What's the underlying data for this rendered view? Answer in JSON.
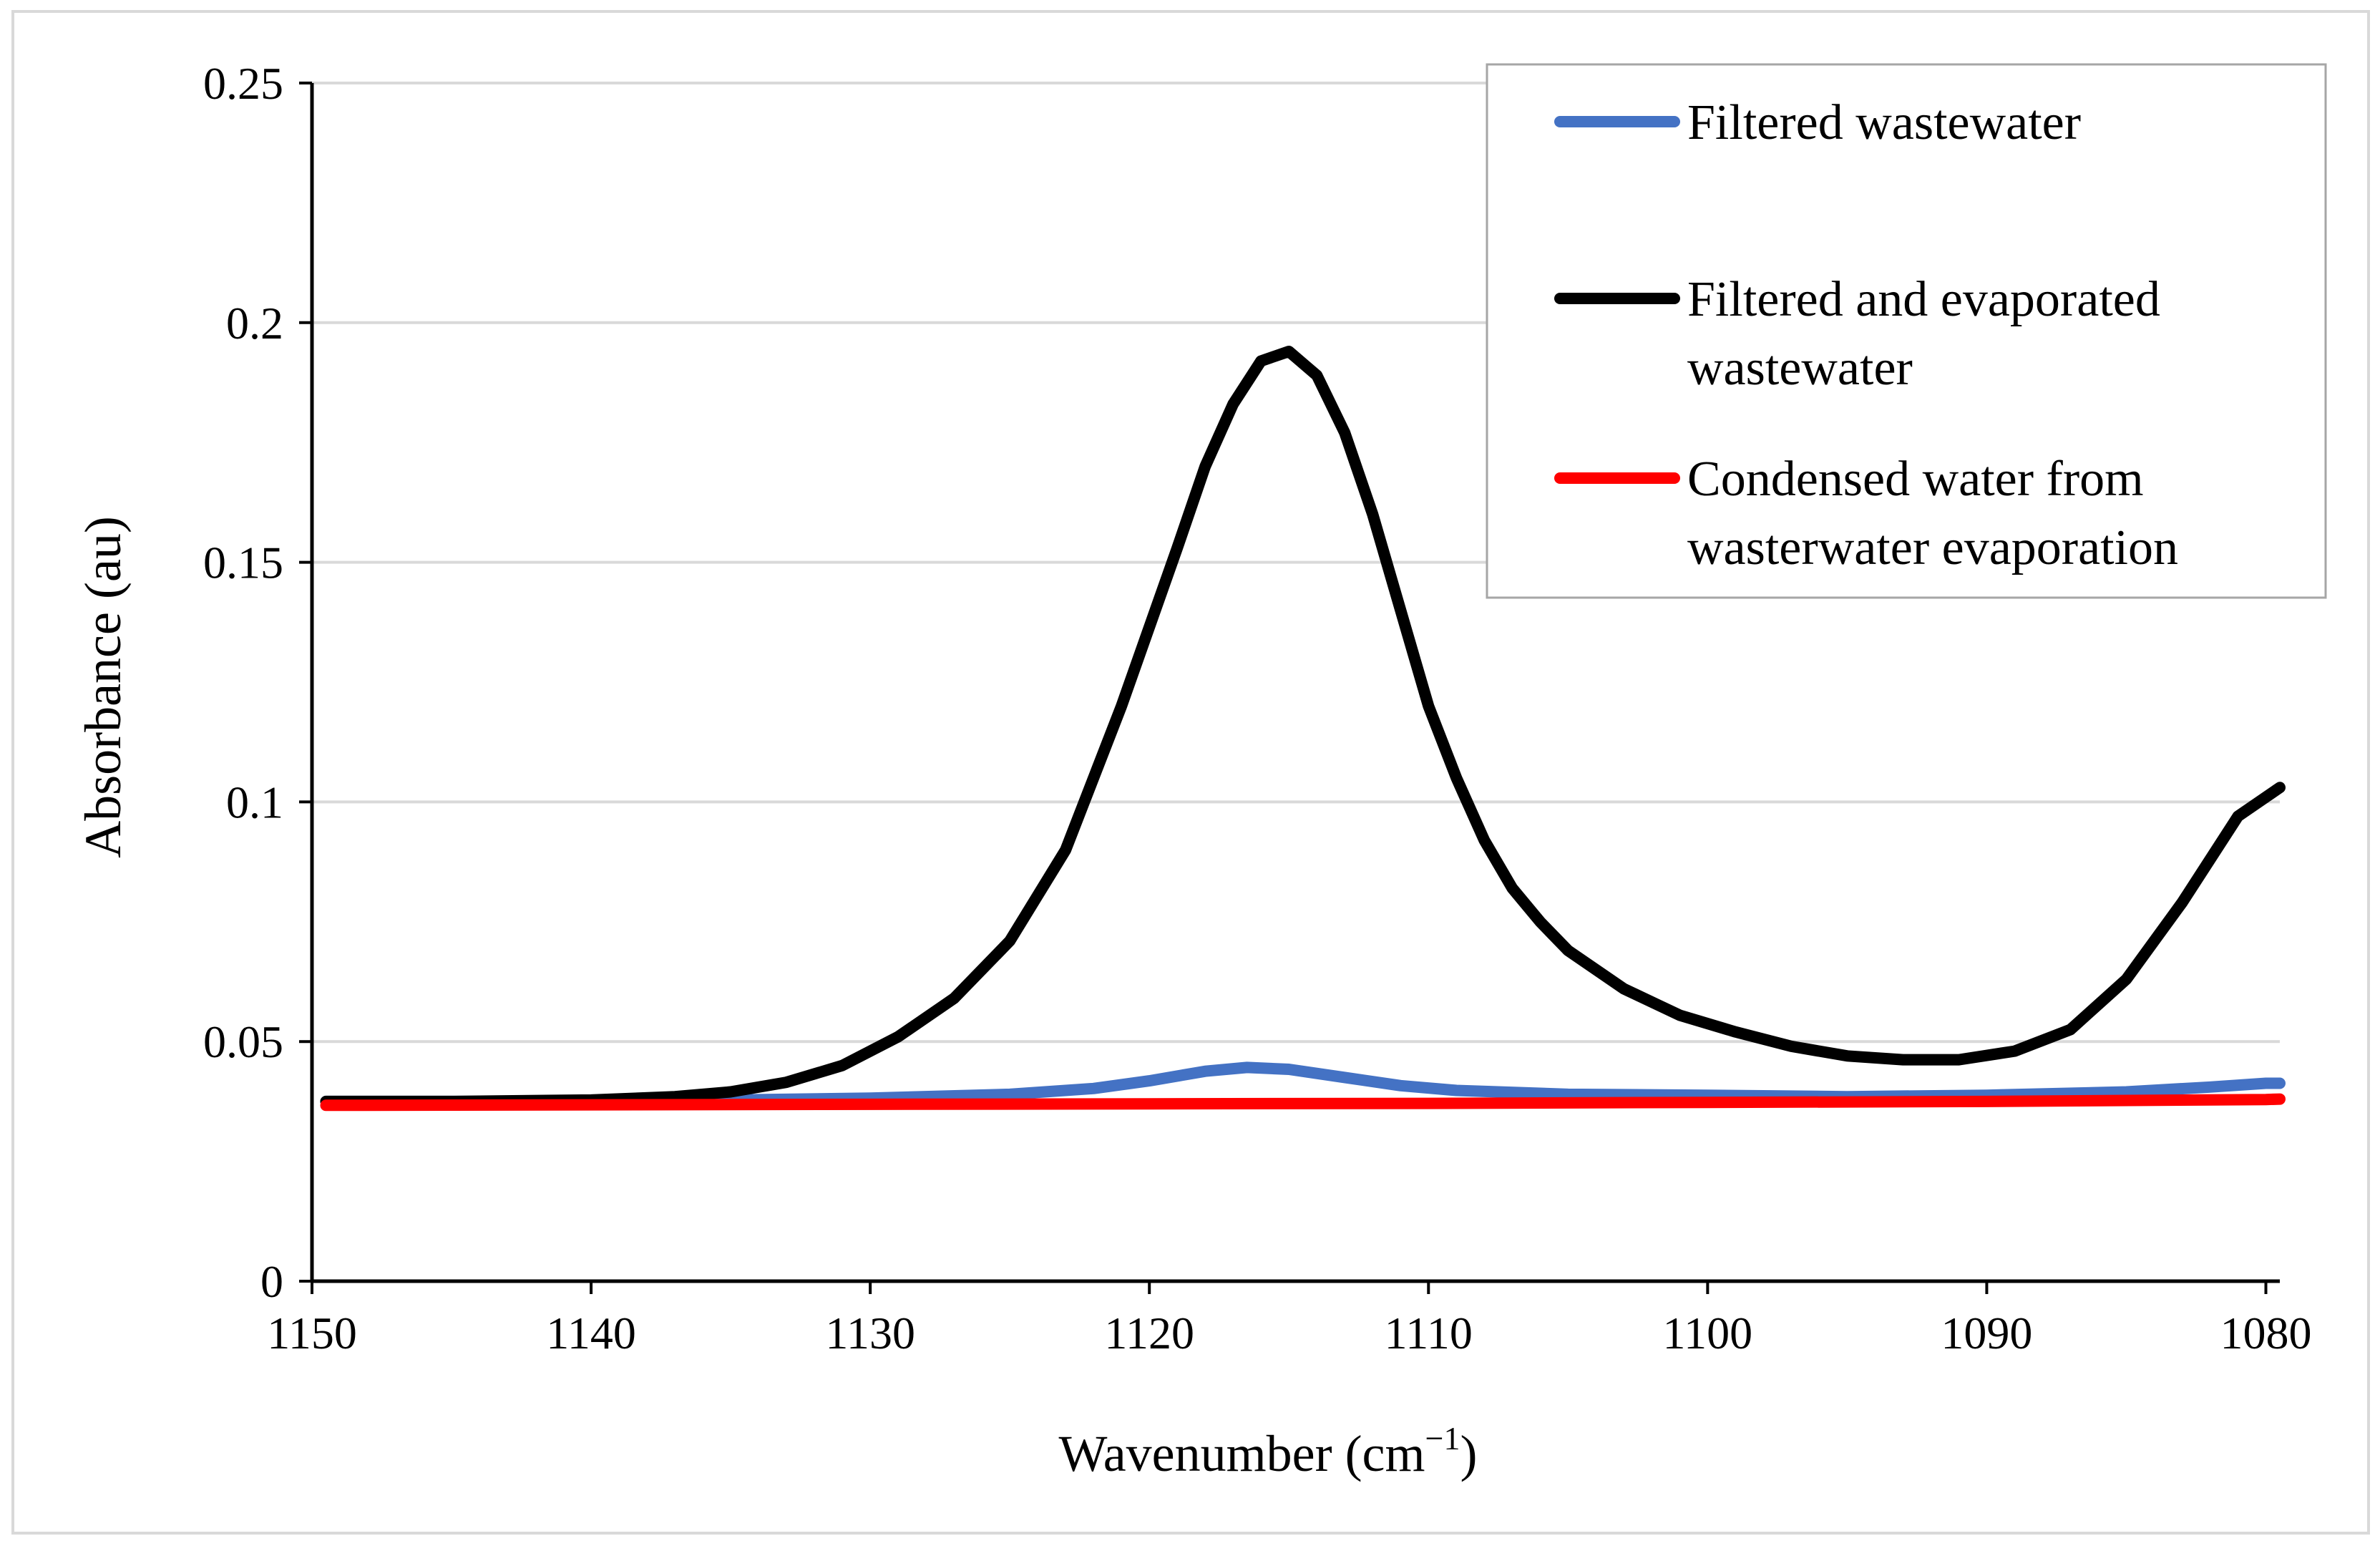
{
  "chart_data": {
    "type": "line",
    "title": "",
    "xlabel": "Wavenumber (cm",
    "xlabel_sup": "−1",
    "xlabel_close": ")",
    "ylabel": "Absorbance (au)",
    "xlim": [
      1150,
      1079.5
    ],
    "x_reversed": true,
    "ylim": [
      0,
      0.25
    ],
    "grid": true,
    "legend_position": "top-right",
    "x_ticks": [
      {
        "value": 1150,
        "label": "1150"
      },
      {
        "value": 1140,
        "label": "1140"
      },
      {
        "value": 1130,
        "label": "1130"
      },
      {
        "value": 1120,
        "label": "1120"
      },
      {
        "value": 1110,
        "label": "1110"
      },
      {
        "value": 1100,
        "label": "1100"
      },
      {
        "value": 1090,
        "label": "1090"
      },
      {
        "value": 1080,
        "label": "1080"
      }
    ],
    "y_ticks": [
      {
        "value": 0,
        "label": "0"
      },
      {
        "value": 0.05,
        "label": "0.05"
      },
      {
        "value": 0.1,
        "label": "0.1"
      },
      {
        "value": 0.15,
        "label": "0.15"
      },
      {
        "value": 0.2,
        "label": "0.2"
      },
      {
        "value": 0.25,
        "label": "0.25"
      }
    ],
    "series": [
      {
        "name": "Filtered wastewater",
        "legend_lines": [
          "Filtered wastewater"
        ],
        "color": "#4472C4",
        "x": [
          1149.5,
          1145,
          1140,
          1135,
          1130,
          1125,
          1122,
          1120,
          1118,
          1116.5,
          1115,
          1113,
          1111,
          1109,
          1105,
          1100,
          1095,
          1090,
          1085,
          1082,
          1080,
          1079.5
        ],
        "y": [
          0.0375,
          0.0375,
          0.0375,
          0.0378,
          0.0382,
          0.039,
          0.0402,
          0.0418,
          0.0438,
          0.0446,
          0.0442,
          0.0425,
          0.0408,
          0.0398,
          0.039,
          0.0388,
          0.0385,
          0.0388,
          0.0395,
          0.0405,
          0.0413,
          0.0413
        ]
      },
      {
        "name": "Filtered and evaporated wastewater",
        "legend_lines": [
          "Filtered and evaporated",
          "wastewater"
        ],
        "color": "#000000",
        "x": [
          1149.5,
          1145,
          1140,
          1137,
          1135,
          1133,
          1131,
          1129,
          1127,
          1125,
          1123,
          1121,
          1119,
          1118,
          1117,
          1116,
          1115,
          1114,
          1113,
          1112,
          1111,
          1110,
          1109,
          1108,
          1107,
          1106,
          1105,
          1103,
          1101,
          1099,
          1097,
          1095,
          1093,
          1091,
          1089,
          1087,
          1085,
          1083,
          1081,
          1079.5
        ],
        "y": [
          0.0375,
          0.0375,
          0.0378,
          0.0385,
          0.0395,
          0.0415,
          0.045,
          0.051,
          0.059,
          0.071,
          0.09,
          0.12,
          0.153,
          0.17,
          0.183,
          0.192,
          0.194,
          0.189,
          0.177,
          0.16,
          0.14,
          0.12,
          0.105,
          0.092,
          0.082,
          0.075,
          0.069,
          0.061,
          0.0555,
          0.052,
          0.049,
          0.047,
          0.0462,
          0.0462,
          0.048,
          0.0525,
          0.063,
          0.079,
          0.097,
          0.103
        ]
      },
      {
        "name": "Condensed water from wasterwater evaporation",
        "legend_lines": [
          "Condensed water from",
          "wasterwater evaporation"
        ],
        "color": "#FF0000",
        "x": [
          1149.5,
          1140,
          1130,
          1120,
          1110,
          1100,
          1090,
          1080,
          1079.5
        ],
        "y": [
          0.0367,
          0.0368,
          0.0369,
          0.037,
          0.0371,
          0.0373,
          0.0375,
          0.0379,
          0.038
        ]
      }
    ]
  }
}
